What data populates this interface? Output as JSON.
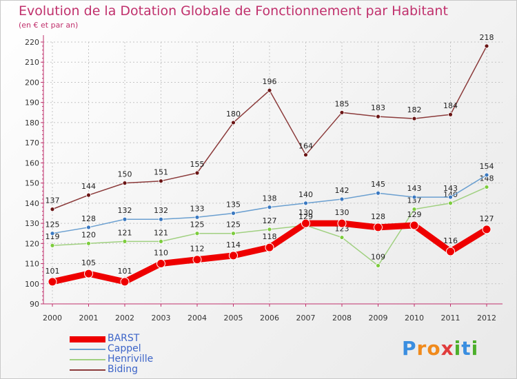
{
  "title": "Evolution de la Dotation Globale de Fonctionnement par Habitant",
  "subtitle": "(en € et par an)",
  "logo": {
    "text": "Proxiti",
    "letters": [
      "P",
      "r",
      "o",
      "x",
      "i",
      "t",
      "i"
    ],
    "colors": [
      "#3a8ee0",
      "#f08a1c",
      "#f08a1c",
      "#e03c3c",
      "#4caf2a",
      "#3a8ee0",
      "#4caf2a"
    ]
  },
  "chart_data": {
    "type": "line",
    "x": [
      "2000",
      "2001",
      "2002",
      "2003",
      "2004",
      "2005",
      "2006",
      "2007",
      "2008",
      "2009",
      "2010",
      "2011",
      "2012"
    ],
    "ylim": [
      90,
      220
    ],
    "yticks": [
      90,
      100,
      110,
      120,
      130,
      140,
      150,
      160,
      170,
      180,
      190,
      200,
      210,
      220
    ],
    "grid": true,
    "legend_position": "bottom-left",
    "series": [
      {
        "name": "BARST",
        "color": "#ee0000",
        "marker_color": "#ee0000",
        "values": [
          101,
          105,
          101,
          110,
          112,
          114,
          118,
          130,
          130,
          128,
          129,
          116,
          127
        ]
      },
      {
        "name": "Cappel",
        "color": "#6a9fd0",
        "marker_color": "#3a78c0",
        "values": [
          125,
          128,
          132,
          132,
          133,
          135,
          138,
          140,
          142,
          145,
          143,
          143,
          154
        ]
      },
      {
        "name": "Henriville",
        "color": "#a0d080",
        "marker_color": "#7ccc3c",
        "values": [
          119,
          120,
          121,
          121,
          125,
          125,
          127,
          129,
          123,
          109,
          137,
          140,
          148
        ]
      },
      {
        "name": "Biding",
        "color": "#8b3a3a",
        "marker_color": "#6a1515",
        "values": [
          137,
          144,
          150,
          151,
          155,
          180,
          196,
          164,
          185,
          183,
          182,
          184,
          218
        ]
      }
    ]
  }
}
